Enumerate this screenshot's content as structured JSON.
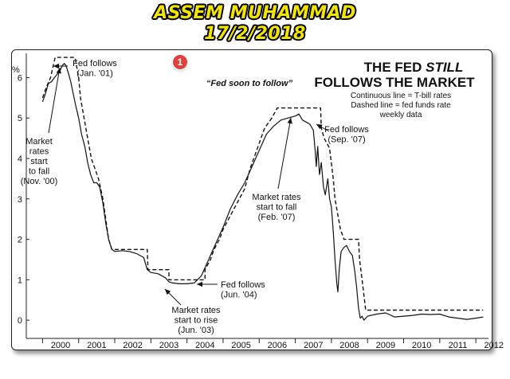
{
  "banner": {
    "name": "ASSEM MUHAMMAD",
    "date": "17/2/2018"
  },
  "marker": {
    "number": "1",
    "color": "#e0413a"
  },
  "chart_data": {
    "type": "line",
    "title_line1_prefix": "THE FED ",
    "title_line1_emph": "STILL",
    "title_line2": "FOLLOWS THE MARKET",
    "subtitle_lines": [
      "Continuous line = T-bill rates",
      "Dashed line = fed funds rate",
      "weekly data"
    ],
    "ylabel": "%",
    "ylim": [
      -0.45,
      6.6
    ],
    "xlim": [
      1999.55,
      2012.35
    ],
    "y_ticks": [
      0,
      1,
      2,
      3,
      4,
      5,
      6
    ],
    "x_ticks": [
      "2000",
      "2001",
      "2002",
      "2003",
      "2004",
      "2005",
      "2006",
      "2007",
      "2008",
      "2009",
      "2010",
      "2011",
      "2012"
    ],
    "grid": false,
    "series": [
      {
        "name": "T-bill rates",
        "style": "solid",
        "points": [
          [
            2000.0,
            5.4
          ],
          [
            2000.08,
            5.6
          ],
          [
            2000.16,
            5.85
          ],
          [
            2000.25,
            5.9
          ],
          [
            2000.33,
            6.0
          ],
          [
            2000.42,
            6.1
          ],
          [
            2000.5,
            6.2
          ],
          [
            2000.55,
            6.3
          ],
          [
            2000.6,
            6.35
          ],
          [
            2000.65,
            6.3
          ],
          [
            2000.72,
            6.1
          ],
          [
            2000.78,
            5.9
          ],
          [
            2000.85,
            5.6
          ],
          [
            2000.92,
            5.3
          ],
          [
            2001.0,
            5.0
          ],
          [
            2001.08,
            4.6
          ],
          [
            2001.17,
            4.3
          ],
          [
            2001.25,
            3.9
          ],
          [
            2001.33,
            3.6
          ],
          [
            2001.42,
            3.4
          ],
          [
            2001.5,
            3.4
          ],
          [
            2001.58,
            3.3
          ],
          [
            2001.67,
            2.9
          ],
          [
            2001.75,
            2.4
          ],
          [
            2001.83,
            2.0
          ],
          [
            2001.92,
            1.75
          ],
          [
            2002.0,
            1.7
          ],
          [
            2002.2,
            1.72
          ],
          [
            2002.4,
            1.7
          ],
          [
            2002.6,
            1.65
          ],
          [
            2002.8,
            1.55
          ],
          [
            2002.9,
            1.25
          ],
          [
            2003.0,
            1.18
          ],
          [
            2003.2,
            1.15
          ],
          [
            2003.4,
            1.05
          ],
          [
            2003.5,
            0.95
          ],
          [
            2003.6,
            0.92
          ],
          [
            2003.8,
            0.9
          ],
          [
            2004.0,
            0.9
          ],
          [
            2004.2,
            0.92
          ],
          [
            2004.4,
            1.1
          ],
          [
            2004.5,
            1.3
          ],
          [
            2004.6,
            1.5
          ],
          [
            2004.75,
            1.8
          ],
          [
            2004.9,
            2.1
          ],
          [
            2005.0,
            2.3
          ],
          [
            2005.2,
            2.75
          ],
          [
            2005.4,
            3.1
          ],
          [
            2005.6,
            3.4
          ],
          [
            2005.8,
            3.8
          ],
          [
            2006.0,
            4.2
          ],
          [
            2006.2,
            4.6
          ],
          [
            2006.4,
            4.8
          ],
          [
            2006.6,
            4.95
          ],
          [
            2006.8,
            5.0
          ],
          [
            2007.0,
            5.05
          ],
          [
            2007.1,
            5.1
          ],
          [
            2007.2,
            4.95
          ],
          [
            2007.3,
            4.9
          ],
          [
            2007.4,
            4.85
          ],
          [
            2007.5,
            4.7
          ],
          [
            2007.55,
            4.2
          ],
          [
            2007.58,
            3.8
          ],
          [
            2007.62,
            4.3
          ],
          [
            2007.67,
            3.6
          ],
          [
            2007.72,
            3.9
          ],
          [
            2007.78,
            3.3
          ],
          [
            2007.83,
            3.1
          ],
          [
            2007.9,
            3.5
          ],
          [
            2007.95,
            3.0
          ],
          [
            2008.0,
            2.8
          ],
          [
            2008.05,
            2.2
          ],
          [
            2008.1,
            1.5
          ],
          [
            2008.15,
            0.9
          ],
          [
            2008.18,
            0.7
          ],
          [
            2008.22,
            1.3
          ],
          [
            2008.27,
            1.7
          ],
          [
            2008.35,
            1.8
          ],
          [
            2008.42,
            1.85
          ],
          [
            2008.5,
            1.7
          ],
          [
            2008.58,
            1.6
          ],
          [
            2008.65,
            1.2
          ],
          [
            2008.7,
            0.8
          ],
          [
            2008.75,
            0.3
          ],
          [
            2008.8,
            0.05
          ],
          [
            2008.85,
            0.1
          ],
          [
            2008.9,
            0.0
          ],
          [
            2009.0,
            0.1
          ],
          [
            2009.25,
            0.15
          ],
          [
            2009.5,
            0.18
          ],
          [
            2009.75,
            0.08
          ],
          [
            2010.0,
            0.1
          ],
          [
            2010.25,
            0.12
          ],
          [
            2010.5,
            0.15
          ],
          [
            2010.75,
            0.14
          ],
          [
            2011.0,
            0.15
          ],
          [
            2011.25,
            0.08
          ],
          [
            2011.5,
            0.05
          ],
          [
            2011.75,
            0.02
          ],
          [
            2012.0,
            0.05
          ],
          [
            2012.2,
            0.08
          ]
        ]
      },
      {
        "name": "fed funds rate",
        "style": "dashed",
        "points": [
          [
            2000.0,
            5.5
          ],
          [
            2000.1,
            5.75
          ],
          [
            2000.22,
            6.0
          ],
          [
            2000.35,
            6.5
          ],
          [
            2000.5,
            6.5
          ],
          [
            2000.9,
            6.5
          ],
          [
            2001.0,
            6.0
          ],
          [
            2001.05,
            5.5
          ],
          [
            2001.15,
            5.0
          ],
          [
            2001.25,
            4.5
          ],
          [
            2001.35,
            4.0
          ],
          [
            2001.45,
            3.75
          ],
          [
            2001.55,
            3.5
          ],
          [
            2001.67,
            3.0
          ],
          [
            2001.75,
            2.5
          ],
          [
            2001.83,
            2.0
          ],
          [
            2001.92,
            1.75
          ],
          [
            2002.9,
            1.75
          ],
          [
            2002.92,
            1.25
          ],
          [
            2003.5,
            1.25
          ],
          [
            2003.5,
            1.0
          ],
          [
            2004.5,
            1.0
          ],
          [
            2004.5,
            1.25
          ],
          [
            2004.65,
            1.5
          ],
          [
            2004.75,
            1.75
          ],
          [
            2004.9,
            2.0
          ],
          [
            2005.0,
            2.25
          ],
          [
            2005.15,
            2.5
          ],
          [
            2005.3,
            2.75
          ],
          [
            2005.45,
            3.0
          ],
          [
            2005.6,
            3.25
          ],
          [
            2005.75,
            3.75
          ],
          [
            2005.95,
            4.25
          ],
          [
            2006.15,
            4.75
          ],
          [
            2006.35,
            5.0
          ],
          [
            2006.5,
            5.25
          ],
          [
            2007.7,
            5.25
          ],
          [
            2007.72,
            4.75
          ],
          [
            2007.8,
            4.5
          ],
          [
            2007.95,
            4.25
          ],
          [
            2008.05,
            3.5
          ],
          [
            2008.1,
            3.0
          ],
          [
            2008.25,
            2.25
          ],
          [
            2008.35,
            2.0
          ],
          [
            2008.75,
            2.0
          ],
          [
            2008.78,
            1.5
          ],
          [
            2008.85,
            1.0
          ],
          [
            2008.95,
            0.25
          ],
          [
            2012.2,
            0.25
          ]
        ]
      }
    ],
    "annotations": [
      {
        "lines": [
          "Fed follows",
          "(Jan. '01)"
        ]
      },
      {
        "lines": [
          "Market",
          "rates",
          "start",
          "to fall",
          "(Nov. '00)"
        ]
      },
      {
        "lines": [
          "“Fed soon to follow”"
        ]
      },
      {
        "lines": [
          "Fed follows",
          "(Sep. '07)"
        ]
      },
      {
        "lines": [
          "Market rates",
          "start to fall",
          "(Feb. '07)"
        ]
      },
      {
        "lines": [
          "Fed follows",
          "(Jun. '04)"
        ]
      },
      {
        "lines": [
          "Market rates",
          "start to rise",
          "(Jun. '03)"
        ]
      }
    ]
  }
}
